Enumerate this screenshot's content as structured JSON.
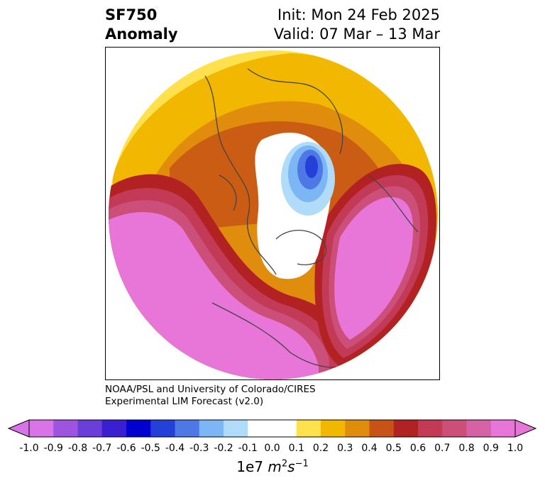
{
  "title": {
    "variable": "SF750",
    "kind": "Anomaly",
    "init": "Init: Mon 24 Feb 2025",
    "valid": "Valid: 07 Mar – 13 Mar"
  },
  "credit": {
    "line1": "NOAA/PSL and University of Colorado/CIRES",
    "line2": "Experimental LIM Forecast (v2.0)"
  },
  "colorbar": {
    "ticks": [
      "-1.0",
      "-0.9",
      "-0.8",
      "-0.7",
      "-0.6",
      "-0.5",
      "-0.4",
      "-0.3",
      "-0.2",
      "-0.1",
      "0.0",
      "0.1",
      "0.2",
      "0.3",
      "0.4",
      "0.5",
      "0.6",
      "0.7",
      "0.8",
      "0.9",
      "1.0"
    ],
    "colors": [
      "#d873e8",
      "#9d55e0",
      "#6a3ed8",
      "#3a1fd0",
      "#0000d0",
      "#2540d8",
      "#4d78e6",
      "#7db6f4",
      "#b0dcfa",
      "#ffffff",
      "#ffffff",
      "#ffe14d",
      "#f2b700",
      "#e08c0c",
      "#c75316",
      "#b22222",
      "#c23a55",
      "#cc4f7a",
      "#d662a6",
      "#e876d8"
    ],
    "extend_low": "#d873e8",
    "extend_high": "#e876d8",
    "units_prefix": "1e7 ",
    "units_main": "m",
    "units_exp1": "2",
    "units_mid": "s",
    "units_exp2": "−1"
  },
  "map": {
    "projection": "north-polar-stereographic",
    "features": [
      "positive anomaly over eastern Pacific and North America",
      "positive anomaly over Eurasia",
      "negative anomaly near Greenland / Arctic"
    ]
  }
}
